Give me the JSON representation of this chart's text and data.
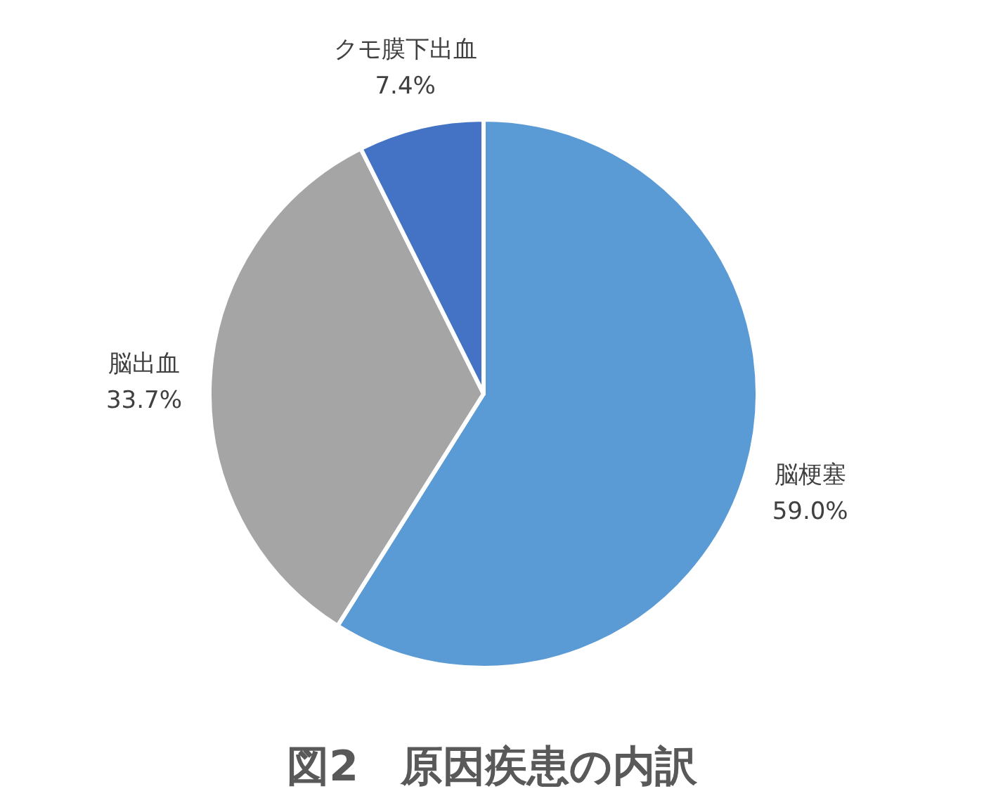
{
  "chart_data": {
    "type": "pie",
    "title": "図2　原因疾患の内訳",
    "categories": [
      "脳梗塞",
      "脳出血",
      "クモ膜下出血"
    ],
    "values": [
      59.0,
      33.7,
      7.4
    ],
    "colors": [
      "#5b9bd5",
      "#a5a5a5",
      "#4472c4"
    ],
    "value_labels": [
      "59.0%",
      "33.7%",
      "7.4%"
    ]
  }
}
